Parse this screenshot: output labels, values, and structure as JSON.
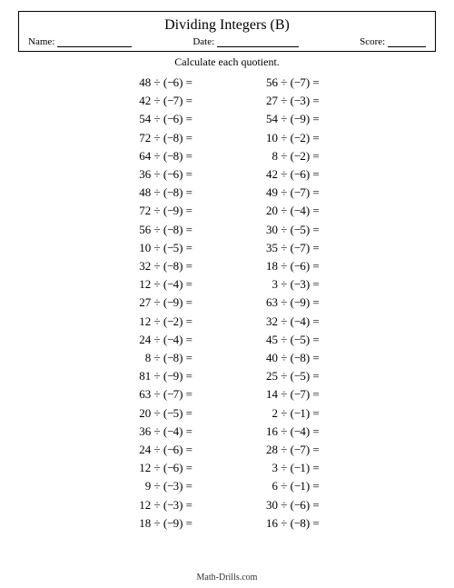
{
  "title": "Dividing Integers (B)",
  "labels": {
    "name": "Name:",
    "date": "Date:",
    "score": "Score:"
  },
  "instruction": "Calculate each quotient.",
  "footer": "Math-Drills.com",
  "left": [
    {
      "a": 48,
      "b": 6
    },
    {
      "a": 42,
      "b": 7
    },
    {
      "a": 54,
      "b": 6
    },
    {
      "a": 72,
      "b": 8
    },
    {
      "a": 64,
      "b": 8
    },
    {
      "a": 36,
      "b": 6
    },
    {
      "a": 48,
      "b": 8
    },
    {
      "a": 72,
      "b": 9
    },
    {
      "a": 56,
      "b": 8
    },
    {
      "a": 10,
      "b": 5
    },
    {
      "a": 32,
      "b": 8
    },
    {
      "a": 12,
      "b": 4
    },
    {
      "a": 27,
      "b": 9
    },
    {
      "a": 12,
      "b": 2
    },
    {
      "a": 24,
      "b": 4
    },
    {
      "a": 8,
      "b": 8
    },
    {
      "a": 81,
      "b": 9
    },
    {
      "a": 63,
      "b": 7
    },
    {
      "a": 20,
      "b": 5
    },
    {
      "a": 36,
      "b": 4
    },
    {
      "a": 24,
      "b": 6
    },
    {
      "a": 12,
      "b": 6
    },
    {
      "a": 9,
      "b": 3
    },
    {
      "a": 12,
      "b": 3
    },
    {
      "a": 18,
      "b": 9
    }
  ],
  "right": [
    {
      "a": 56,
      "b": 7
    },
    {
      "a": 27,
      "b": 3
    },
    {
      "a": 54,
      "b": 9
    },
    {
      "a": 10,
      "b": 2
    },
    {
      "a": 8,
      "b": 2
    },
    {
      "a": 42,
      "b": 6
    },
    {
      "a": 49,
      "b": 7
    },
    {
      "a": 20,
      "b": 4
    },
    {
      "a": 30,
      "b": 5
    },
    {
      "a": 35,
      "b": 7
    },
    {
      "a": 18,
      "b": 6
    },
    {
      "a": 3,
      "b": 3
    },
    {
      "a": 63,
      "b": 9
    },
    {
      "a": 32,
      "b": 4
    },
    {
      "a": 45,
      "b": 5
    },
    {
      "a": 40,
      "b": 8
    },
    {
      "a": 25,
      "b": 5
    },
    {
      "a": 14,
      "b": 7
    },
    {
      "a": 2,
      "b": 1
    },
    {
      "a": 16,
      "b": 4
    },
    {
      "a": 28,
      "b": 7
    },
    {
      "a": 3,
      "b": 1
    },
    {
      "a": 6,
      "b": 1
    },
    {
      "a": 30,
      "b": 6
    },
    {
      "a": 16,
      "b": 8
    }
  ]
}
